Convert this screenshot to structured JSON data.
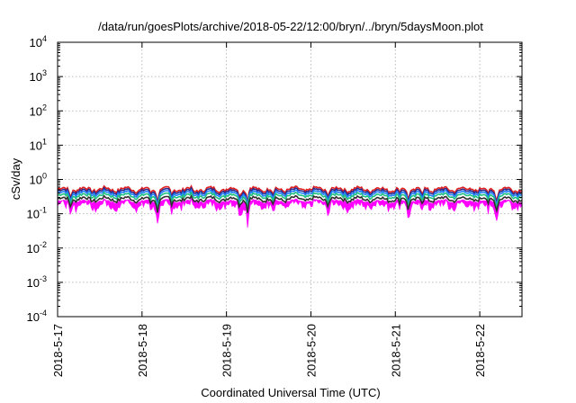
{
  "chart_data": {
    "type": "area",
    "title": "/data/run/goesPlots/archive/2018-05-22/12:00/bryn/../bryn/5daysMoon.plot",
    "xlabel": "Coordinated Universal Time (UTC)",
    "ylabel": "cSv/day",
    "y_scale": "log",
    "ylim": [
      0.0001,
      10000
    ],
    "x_range_days": [
      0,
      5.5
    ],
    "x_ticks": [
      {
        "day": 0,
        "label": "2018-5-17"
      },
      {
        "day": 1,
        "label": "2018-5-18"
      },
      {
        "day": 2,
        "label": "2018-5-19"
      },
      {
        "day": 3,
        "label": "2018-5-20"
      },
      {
        "day": 4,
        "label": "2018-5-21"
      },
      {
        "day": 5,
        "label": "2018-5-22"
      }
    ],
    "y_ticks": [
      {
        "value": 0.0001,
        "base": "10",
        "exp": "-4"
      },
      {
        "value": 0.001,
        "base": "10",
        "exp": "-3"
      },
      {
        "value": 0.01,
        "base": "10",
        "exp": "-2"
      },
      {
        "value": 0.1,
        "base": "10",
        "exp": "-1"
      },
      {
        "value": 1,
        "base": "10",
        "exp": "0"
      },
      {
        "value": 10,
        "base": "10",
        "exp": "1"
      },
      {
        "value": 100,
        "base": "10",
        "exp": "2"
      },
      {
        "value": 1000,
        "base": "10",
        "exp": "3"
      },
      {
        "value": 10000,
        "base": "10",
        "exp": "4"
      }
    ],
    "grid": true,
    "series": [
      {
        "color": "#ff00ff",
        "base": 0.2,
        "fill": true
      },
      {
        "color": "#e02020",
        "base": 0.52
      },
      {
        "color": "#2a2a8a",
        "base": 0.46
      },
      {
        "color": "#2080ff",
        "base": 0.4
      },
      {
        "color": "#20c080",
        "base": 0.34
      },
      {
        "color": "#303030",
        "base": 0.27
      }
    ],
    "dips": [
      {
        "day": 0.15,
        "factor": 0.55
      },
      {
        "day": 1.1,
        "factor": 0.6
      },
      {
        "day": 1.18,
        "factor": 0.3
      },
      {
        "day": 1.35,
        "factor": 0.55
      },
      {
        "day": 1.62,
        "factor": 0.65
      },
      {
        "day": 2.15,
        "factor": 0.6
      },
      {
        "day": 2.25,
        "factor": 0.3
      },
      {
        "day": 2.55,
        "factor": 0.55
      },
      {
        "day": 3.2,
        "factor": 0.7
      },
      {
        "day": 4.05,
        "factor": 0.6
      },
      {
        "day": 4.15,
        "factor": 0.4
      },
      {
        "day": 4.32,
        "factor": 0.55
      },
      {
        "day": 5.1,
        "factor": 0.6
      },
      {
        "day": 5.2,
        "factor": 0.4
      }
    ]
  }
}
